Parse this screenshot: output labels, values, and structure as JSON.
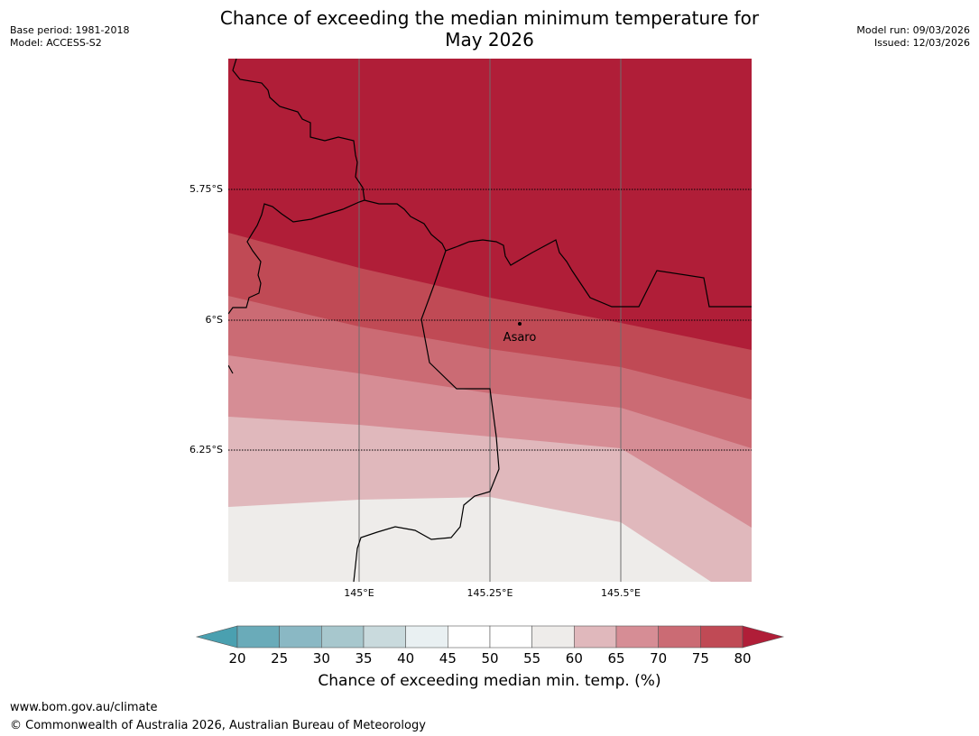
{
  "title": {
    "line1": "Chance of exceeding the median minimum temperature for",
    "line2": "May 2026"
  },
  "meta": {
    "base_period": "Base period: 1981-2018",
    "model": "Model: ACCESS-S2",
    "model_run": "Model run: 09/03/2026",
    "issued": "Issued: 12/03/2026"
  },
  "map": {
    "lat_labels": [
      "5.75°S",
      "6°S",
      "6.25°S"
    ],
    "lon_labels": [
      "145°E",
      "145.25°E",
      "145.5°E"
    ],
    "place": {
      "name": "Asaro"
    },
    "bands": [
      {
        "range": "75-80+",
        "color": "#b01e38"
      },
      {
        "range": "70-75",
        "color": "#c04a55"
      },
      {
        "range": "65-70",
        "color": "#cb6b74"
      },
      {
        "range": "60-65",
        "color": "#d68d95"
      },
      {
        "range": "55-60",
        "color": "#e0b8bc"
      },
      {
        "range": "50-55",
        "color": "#eeecea"
      }
    ]
  },
  "colorbar": {
    "title": "Chance of exceeding median min. temp. (%)",
    "ticks": [
      "20",
      "25",
      "30",
      "35",
      "40",
      "45",
      "50",
      "55",
      "60",
      "65",
      "70",
      "75",
      "80"
    ],
    "colors": [
      "#6aabb9",
      "#8ab8c4",
      "#a7c7cd",
      "#c9dadd",
      "#e9f0f2",
      "#ffffff",
      "#ffffff",
      "#eeecea",
      "#e0b8bc",
      "#d68d95",
      "#cb6b74",
      "#c04a55",
      "#b01e38"
    ],
    "low_extend_color": "#4aa0b0",
    "high_extend_color": "#b01e38"
  },
  "footer": {
    "url": "www.bom.gov.au/climate",
    "copyright": "© Commonwealth of Australia 2026, Australian Bureau of Meteorology"
  }
}
